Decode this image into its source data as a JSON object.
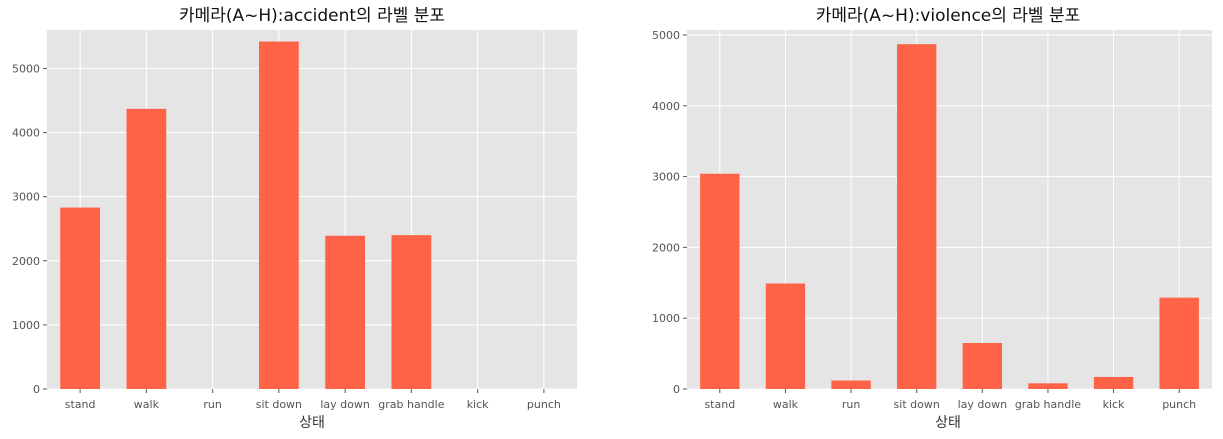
{
  "chart_data": [
    {
      "type": "bar",
      "title": "카메라(A~H):accident의 라벨 분포",
      "xlabel": "상태",
      "ylabel": "",
      "categories": [
        "stand",
        "walk",
        "run",
        "sit down",
        "lay down",
        "grab handle",
        "kick",
        "punch"
      ],
      "values": [
        2830,
        4370,
        0,
        5420,
        2390,
        2400,
        0,
        0
      ],
      "ylim": [
        0,
        5600
      ],
      "yticks": [
        0,
        1000,
        2000,
        3000,
        4000,
        5000
      ],
      "grid": true,
      "bar_color": "#ff6347"
    },
    {
      "type": "bar",
      "title": "카메라(A~H):violence의 라벨 분포",
      "xlabel": "상태",
      "ylabel": "",
      "categories": [
        "stand",
        "walk",
        "run",
        "sit down",
        "lay down",
        "grab handle",
        "kick",
        "punch"
      ],
      "values": [
        3040,
        1490,
        120,
        4870,
        650,
        80,
        170,
        1290
      ],
      "ylim": [
        0,
        5070
      ],
      "yticks": [
        0,
        1000,
        2000,
        3000,
        4000,
        5000
      ],
      "grid": true,
      "bar_color": "#ff6347"
    }
  ]
}
